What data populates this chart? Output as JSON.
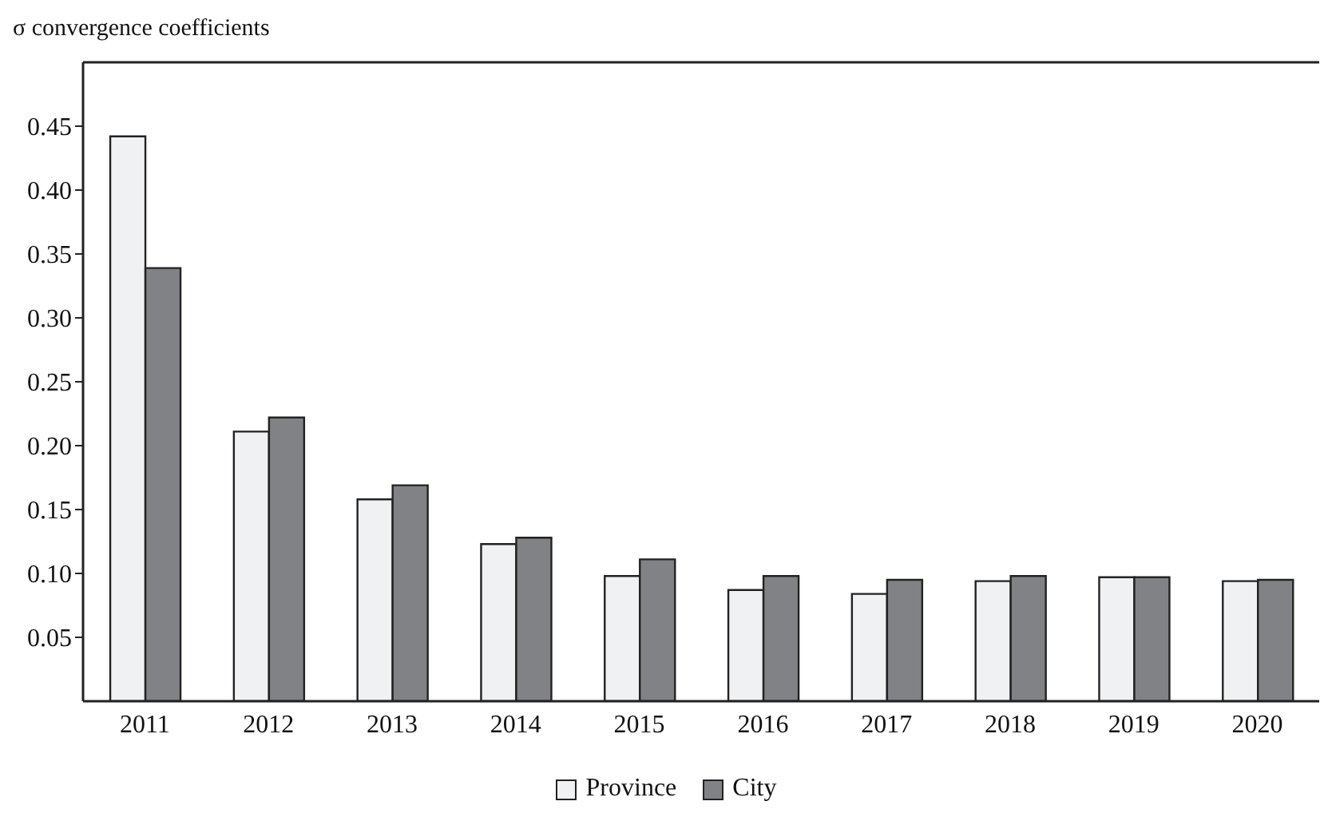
{
  "chart_data": {
    "type": "bar",
    "ylabel": "σ convergence coefficients",
    "categories": [
      "2011",
      "2012",
      "2013",
      "2014",
      "2015",
      "2016",
      "2017",
      "2018",
      "2019",
      "2020"
    ],
    "series": [
      {
        "name": "Province",
        "color": "#f0f1f3",
        "values": [
          0.442,
          0.211,
          0.158,
          0.123,
          0.098,
          0.087,
          0.084,
          0.094,
          0.097,
          0.094
        ]
      },
      {
        "name": "City",
        "color": "#808285",
        "values": [
          0.339,
          0.222,
          0.169,
          0.128,
          0.111,
          0.098,
          0.095,
          0.098,
          0.097,
          0.095
        ]
      }
    ],
    "ylim": [
      0,
      0.5
    ],
    "yticks": [
      0.05,
      {
        "value": 0.1,
        "label": "0.10"
      },
      0.15,
      {
        "value": 0.2,
        "label": "0.20"
      },
      0.25,
      {
        "value": 0.3,
        "label": "0.30"
      },
      0.35,
      {
        "value": 0.4,
        "label": "0.40"
      },
      0.45
    ],
    "grid": false,
    "legend": "bottom"
  }
}
